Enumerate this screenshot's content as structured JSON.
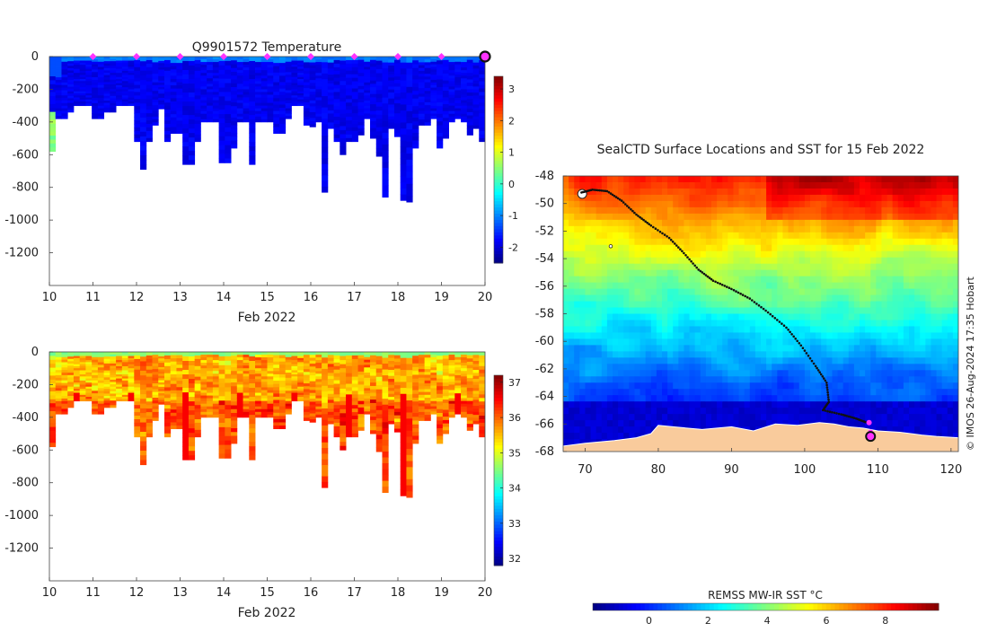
{
  "chart_data": [
    {
      "type": "heatmap",
      "title": "Q9901572  Temperature",
      "variable": "temperature",
      "xlabel": "Feb 2022",
      "ylabel": "",
      "xlim": [
        10,
        20
      ],
      "ylim": [
        -1400,
        0
      ],
      "xticks": [
        10,
        11,
        12,
        13,
        14,
        15,
        16,
        17,
        18,
        19,
        20
      ],
      "yticks": [
        0,
        -200,
        -400,
        -600,
        -800,
        -1000,
        -1200
      ],
      "colorbar": {
        "min": -2.5,
        "max": 3.4,
        "ticks": [
          3,
          2,
          1,
          0,
          -1,
          -2
        ],
        "colormap": "jet"
      },
      "surface_markers_days": [
        11,
        12,
        13,
        14,
        15,
        16,
        17,
        18,
        19
      ],
      "last_position_day": 20,
      "profile_depths": [
        580,
        380,
        380,
        340,
        300,
        300,
        300,
        380,
        380,
        340,
        340,
        300,
        300,
        300,
        520,
        690,
        520,
        420,
        320,
        520,
        470,
        470,
        660,
        660,
        520,
        400,
        400,
        400,
        650,
        650,
        560,
        400,
        400,
        660,
        400,
        400,
        400,
        470,
        470,
        380,
        300,
        300,
        420,
        430,
        400,
        830,
        440,
        520,
        600,
        520,
        520,
        480,
        380,
        500,
        610,
        860,
        440,
        490,
        880,
        890,
        560,
        420,
        420,
        380,
        560,
        500,
        400,
        380,
        400,
        480,
        440,
        520
      ],
      "cells_per_column": 24
    },
    {
      "type": "heatmap",
      "title": "",
      "variable": "salinity",
      "xlabel": "Feb 2022",
      "ylabel": "",
      "xlim": [
        10,
        20
      ],
      "ylim": [
        -1400,
        0
      ],
      "xticks": [
        10,
        11,
        12,
        13,
        14,
        15,
        16,
        17,
        18,
        19,
        20
      ],
      "yticks": [
        0,
        -200,
        -400,
        -600,
        -800,
        -1000,
        -1200
      ],
      "colorbar": {
        "min": 31.8,
        "max": 37.2,
        "ticks": [
          37,
          36,
          35,
          34,
          33,
          32
        ],
        "colormap": "jet"
      },
      "profile_depths": [
        580,
        380,
        380,
        340,
        300,
        300,
        300,
        380,
        380,
        340,
        340,
        300,
        300,
        300,
        520,
        690,
        520,
        420,
        320,
        520,
        470,
        470,
        660,
        660,
        520,
        400,
        400,
        400,
        650,
        650,
        560,
        400,
        400,
        660,
        400,
        400,
        400,
        470,
        470,
        380,
        300,
        300,
        420,
        430,
        400,
        830,
        440,
        520,
        600,
        520,
        520,
        480,
        380,
        500,
        610,
        860,
        440,
        490,
        880,
        890,
        560,
        420,
        420,
        380,
        560,
        500,
        400,
        380,
        400,
        480,
        440,
        520
      ],
      "cells_per_column": 24
    },
    {
      "type": "heatmap",
      "title": "SealCTD Surface Locations and SST for 15 Feb 2022",
      "variable": "sst",
      "xlabel": "",
      "ylabel": "",
      "xlim": [
        67,
        121
      ],
      "ylim": [
        -68,
        -48
      ],
      "xticks": [
        70,
        80,
        90,
        100,
        110,
        120
      ],
      "yticks": [
        -48,
        -50,
        -52,
        -54,
        -56,
        -58,
        -60,
        -62,
        -64,
        -66,
        -68
      ],
      "colorbar": {
        "label": "REMSS MW-IR SST °C",
        "min": -1.9,
        "max": 9.8,
        "ticks": [
          0,
          2,
          4,
          6,
          8
        ],
        "colormap": "jet"
      },
      "track": [
        [
          69.5,
          -49.2
        ],
        [
          71.0,
          -49.0
        ],
        [
          73.0,
          -49.1
        ],
        [
          75.0,
          -49.8
        ],
        [
          77.0,
          -50.8
        ],
        [
          79.0,
          -51.6
        ],
        [
          81.5,
          -52.5
        ],
        [
          83.5,
          -53.6
        ],
        [
          85.5,
          -54.8
        ],
        [
          87.5,
          -55.6
        ],
        [
          90.0,
          -56.2
        ],
        [
          92.5,
          -56.9
        ],
        [
          95.0,
          -57.9
        ],
        [
          97.5,
          -59.0
        ],
        [
          99.5,
          -60.3
        ],
        [
          101.5,
          -61.8
        ],
        [
          103.0,
          -63.0
        ],
        [
          103.3,
          -64.4
        ],
        [
          102.5,
          -65.0
        ],
        [
          105.0,
          -65.3
        ],
        [
          107.0,
          -65.6
        ],
        [
          108.5,
          -65.9
        ]
      ],
      "surface_locations": [
        [
          108.8,
          -65.9
        ],
        [
          109.0,
          -66.6
        ]
      ],
      "last_location": [
        109.0,
        -66.9
      ],
      "land_color": "#f9cb9c",
      "credit": "© IMOS 26-Aug-2024 17:35 Hobart"
    }
  ]
}
